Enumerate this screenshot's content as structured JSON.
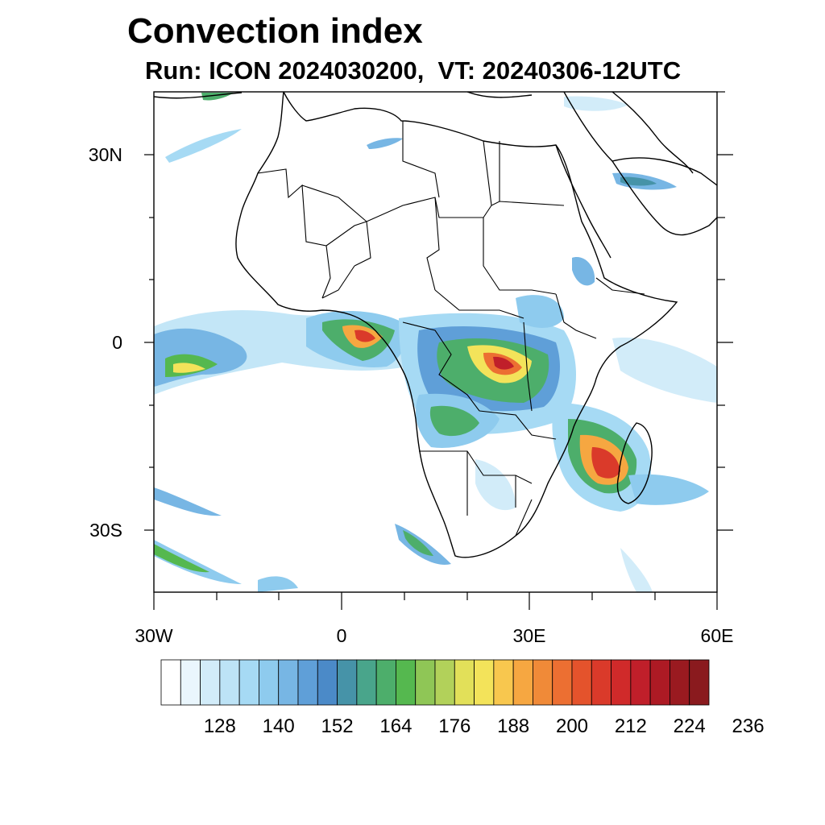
{
  "title": "Convection index",
  "subtitle": "Run: ICON 2024030200,  VT: 20240306-12UTC",
  "map": {
    "lon_range": [
      -30,
      60
    ],
    "lat_range": [
      -40,
      40
    ],
    "x_ticks": [
      "30W",
      "0",
      "30E",
      "60E"
    ],
    "y_ticks": [
      "30N",
      "0",
      "30S"
    ]
  },
  "colorbar": {
    "labels": [
      "128",
      "140",
      "152",
      "164",
      "176",
      "188",
      "200",
      "212",
      "224",
      "236"
    ],
    "colors": [
      "#ffffff",
      "#eaf6fd",
      "#d2ecf9",
      "#bde3f6",
      "#a6daf4",
      "#8ecbee",
      "#77b6e4",
      "#5f9fd8",
      "#4b8ac8",
      "#4693a8",
      "#49a58b",
      "#4dae6b",
      "#55b84f",
      "#8fc656",
      "#b2d15a",
      "#e2e059",
      "#f3e35a",
      "#f8c74e",
      "#f6a741",
      "#f08a38",
      "#ec6f32",
      "#e4532c",
      "#da3a2a",
      "#d02a2a",
      "#c01f2a",
      "#ad1a24",
      "#9a1a20",
      "#8a1a1e"
    ]
  }
}
